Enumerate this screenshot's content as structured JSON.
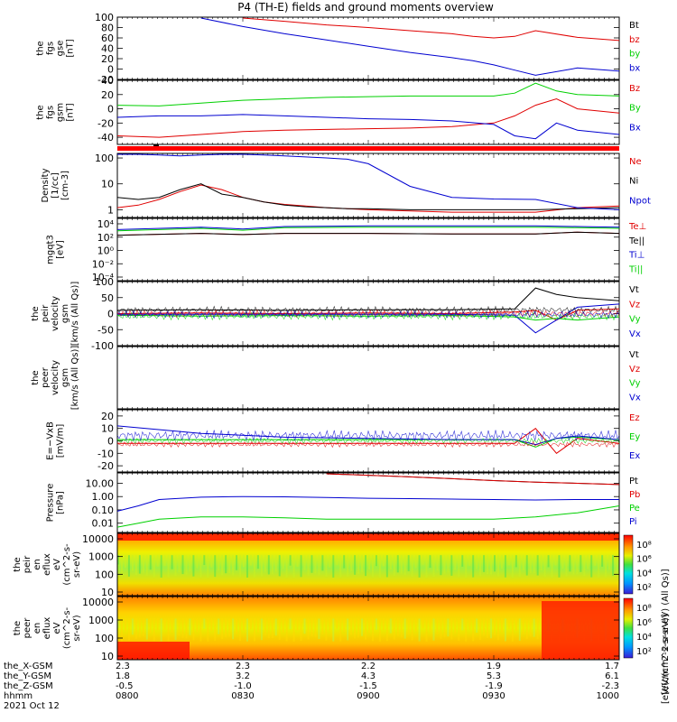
{
  "title": "P4 (TH-E) fields and ground moments overview",
  "colors": {
    "black": "#000000",
    "red": "#e00000",
    "green": "#00d000",
    "blue": "#0000d0",
    "spec_low": "#0000ff",
    "spec_high": "#ff0000"
  },
  "chart_data": [
    {
      "id": "fgs_gse",
      "type": "line",
      "ylabel": [
        "the",
        "fgs",
        "gse",
        "[nT]"
      ],
      "ylim": [
        -20,
        100
      ],
      "yticks": [
        "100",
        "80",
        "60",
        "40",
        "20",
        "0",
        "-20"
      ],
      "legend": [
        {
          "name": "Bt",
          "color": "black"
        },
        {
          "name": "bz",
          "color": "red"
        },
        {
          "name": "by",
          "color": "green"
        },
        {
          "name": "bx",
          "color": "blue"
        }
      ],
      "x": [
        0,
        10,
        20,
        30,
        40,
        50,
        60,
        70,
        80,
        85,
        90,
        95,
        100,
        110,
        120
      ],
      "series": [
        {
          "color": "black",
          "values": [
            null,
            null,
            null,
            null,
            null,
            null,
            null,
            null,
            null,
            null,
            null,
            null,
            null,
            null,
            null
          ]
        },
        {
          "color": "red",
          "values": [
            null,
            null,
            null,
            100,
            92,
            85,
            80,
            74,
            68,
            63,
            60,
            63,
            74,
            61,
            55
          ]
        },
        {
          "color": "green",
          "values": [
            null,
            null,
            null,
            null,
            null,
            null,
            null,
            null,
            null,
            null,
            null,
            null,
            null,
            null,
            null
          ]
        },
        {
          "color": "blue",
          "values": [
            null,
            null,
            100,
            82,
            68,
            56,
            44,
            32,
            22,
            16,
            8,
            -2,
            -12,
            2,
            -4
          ]
        }
      ]
    },
    {
      "id": "fgs_gsm",
      "type": "line",
      "ylabel": [
        "the",
        "fgs",
        "gsm",
        "[nT]"
      ],
      "ylim": [
        -50,
        40
      ],
      "yticks": [
        "40",
        "20",
        "0",
        "-20",
        "-40"
      ],
      "legend": [
        {
          "name": "Bz",
          "color": "red"
        },
        {
          "name": "By",
          "color": "green"
        },
        {
          "name": "Bx",
          "color": "blue"
        }
      ],
      "x": [
        0,
        10,
        20,
        30,
        40,
        50,
        60,
        70,
        80,
        90,
        95,
        100,
        105,
        110,
        120
      ],
      "series": [
        {
          "color": "red",
          "values": [
            -38,
            -40,
            -36,
            -32,
            -30,
            -29,
            -28,
            -27,
            -25,
            -20,
            -10,
            5,
            14,
            0,
            -6
          ]
        },
        {
          "color": "green",
          "values": [
            5,
            4,
            8,
            12,
            14,
            16,
            17,
            18,
            18,
            18,
            22,
            36,
            25,
            20,
            18
          ]
        },
        {
          "color": "blue",
          "values": [
            -12,
            -10,
            -10,
            -8,
            -10,
            -12,
            -14,
            -15,
            -17,
            -22,
            -38,
            -42,
            -20,
            -30,
            -36
          ]
        }
      ]
    },
    {
      "id": "density",
      "type": "line",
      "ylabel": [
        "Density",
        "[1/cc]",
        "[cm-3]"
      ],
      "yscale": "log",
      "ylim": [
        0.5,
        150
      ],
      "yticks": [
        "100",
        "10",
        "1"
      ],
      "legend": [
        {
          "name": "Ne",
          "color": "red"
        },
        {
          "name": "Ni",
          "color": "black"
        },
        {
          "name": "Npot",
          "color": "blue"
        }
      ],
      "x": [
        0,
        5,
        10,
        15,
        20,
        25,
        30,
        35,
        40,
        45,
        50,
        55,
        60,
        70,
        80,
        90,
        100,
        110,
        120
      ],
      "series": [
        {
          "color": "red",
          "values": [
            1.2,
            1.5,
            2.5,
            5,
            9,
            6,
            3,
            2,
            1.6,
            1.4,
            1.2,
            1.1,
            1.0,
            0.9,
            0.8,
            0.8,
            0.8,
            1.2,
            1.4
          ]
        },
        {
          "color": "black",
          "values": [
            3,
            2.5,
            3,
            6,
            10,
            4,
            3,
            2,
            1.5,
            1.3,
            1.2,
            1.1,
            1.1,
            1.0,
            1.0,
            1.0,
            1.0,
            1.1,
            1.2
          ]
        },
        {
          "color": "blue",
          "values": [
            150,
            140,
            130,
            120,
            130,
            140,
            140,
            130,
            120,
            110,
            100,
            90,
            60,
            8,
            3,
            2.6,
            2.5,
            1.2,
            1.0
          ]
        }
      ]
    },
    {
      "id": "temperature",
      "type": "line",
      "ylabel": [
        "mgqt3",
        "[eV]"
      ],
      "yscale": "log",
      "ylim": [
        -5,
        5
      ],
      "yticks": [
        "10⁴",
        "10²",
        "10⁰",
        "10⁻²",
        "10⁻⁴"
      ],
      "legend": [
        {
          "name": "Te⊥",
          "color": "red"
        },
        {
          "name": "Te||",
          "color": "black"
        },
        {
          "name": "Ti⊥",
          "color": "blue"
        },
        {
          "name": "Ti||",
          "color": "green"
        }
      ],
      "x": [
        0,
        20,
        30,
        40,
        60,
        80,
        100,
        110,
        120
      ],
      "series": [
        {
          "color": "red",
          "values": [
            2.3,
            2.6,
            2.4,
            2.6,
            2.6,
            2.5,
            2.5,
            2.8,
            2.6
          ]
        },
        {
          "color": "black",
          "values": [
            2.3,
            2.6,
            2.4,
            2.6,
            2.6,
            2.5,
            2.5,
            2.8,
            2.6
          ]
        },
        {
          "color": "blue",
          "values": [
            3.2,
            3.6,
            3.3,
            3.7,
            3.8,
            3.8,
            3.8,
            3.7,
            3.6
          ]
        },
        {
          "color": "green",
          "values": [
            3.0,
            3.4,
            3.1,
            3.5,
            3.6,
            3.6,
            3.6,
            3.5,
            3.4
          ]
        }
      ]
    },
    {
      "id": "peir_velocity",
      "type": "line",
      "ylabel": [
        "the",
        "peir",
        "velocity",
        "gsm",
        "[km/s (All Qs)]"
      ],
      "ylim": [
        -100,
        100
      ],
      "yticks": [
        "100",
        "50",
        "0",
        "-50",
        "-100"
      ],
      "legend": [
        {
          "name": "Vt",
          "color": "black"
        },
        {
          "name": "Vz",
          "color": "red"
        },
        {
          "name": "Vy",
          "color": "green"
        },
        {
          "name": "Vx",
          "color": "blue"
        }
      ],
      "x": [
        0,
        20,
        40,
        60,
        80,
        95,
        100,
        105,
        110,
        120
      ],
      "series": [
        {
          "color": "black",
          "values": [
            10,
            12,
            10,
            12,
            12,
            15,
            80,
            60,
            50,
            40
          ]
        },
        {
          "color": "red",
          "values": [
            0,
            2,
            0,
            2,
            0,
            5,
            10,
            -20,
            10,
            15
          ]
        },
        {
          "color": "green",
          "values": [
            -5,
            -8,
            -6,
            -8,
            -6,
            -10,
            -20,
            -15,
            -20,
            -10
          ]
        },
        {
          "color": "blue",
          "values": [
            -2,
            -2,
            -2,
            -2,
            -2,
            -5,
            -60,
            -20,
            20,
            30
          ]
        }
      ]
    },
    {
      "id": "peer_velocity",
      "type": "line",
      "ylabel": [
        "the",
        "peer",
        "velocity",
        "gsm",
        "[km/s (All Qs)]"
      ],
      "ylim": [
        -100,
        100
      ],
      "yticks": [],
      "legend": [
        {
          "name": "Vt",
          "color": "black"
        },
        {
          "name": "Vz",
          "color": "red"
        },
        {
          "name": "Vy",
          "color": "green"
        },
        {
          "name": "Vx",
          "color": "blue"
        }
      ],
      "x": [],
      "series": []
    },
    {
      "id": "efield",
      "type": "line",
      "ylabel": [
        "E=−VxB",
        "[mV/m]"
      ],
      "ylim": [
        -25,
        25
      ],
      "yticks": [
        "20",
        "10",
        "0",
        "-10",
        "-20"
      ],
      "legend": [
        {
          "name": "Ez",
          "color": "red"
        },
        {
          "name": "Ey",
          "color": "green"
        },
        {
          "name": "Ex",
          "color": "blue"
        }
      ],
      "x": [
        0,
        20,
        40,
        60,
        80,
        95,
        100,
        105,
        110,
        120
      ],
      "series": [
        {
          "color": "red",
          "values": [
            -2,
            -2,
            -2,
            -2,
            -2,
            -2,
            10,
            -10,
            2,
            -2
          ]
        },
        {
          "color": "green",
          "values": [
            1,
            1,
            1,
            1,
            1,
            1,
            -5,
            2,
            3,
            1
          ]
        },
        {
          "color": "blue",
          "values": [
            12,
            6,
            3,
            2,
            1,
            1,
            -3,
            2,
            4,
            1
          ]
        }
      ]
    },
    {
      "id": "pressure",
      "type": "line",
      "ylabel": [
        "Pressure",
        "[nPa]"
      ],
      "yscale": "log",
      "ylim": [
        0.002,
        60
      ],
      "yticks": [
        "10.00",
        "1.00",
        "0.10",
        "0.01"
      ],
      "legend": [
        {
          "name": "Pt",
          "color": "black"
        },
        {
          "name": "Pb",
          "color": "red"
        },
        {
          "name": "Pe",
          "color": "green"
        },
        {
          "name": "Pi",
          "color": "blue"
        }
      ],
      "x": [
        0,
        5,
        10,
        20,
        30,
        40,
        50,
        60,
        70,
        80,
        90,
        100,
        110,
        120
      ],
      "series": [
        {
          "color": "black",
          "values": [
            null,
            null,
            null,
            null,
            null,
            null,
            60,
            40,
            30,
            22,
            16,
            12,
            10,
            8
          ]
        },
        {
          "color": "red",
          "values": [
            null,
            null,
            null,
            null,
            null,
            null,
            60,
            40,
            30,
            22,
            16,
            12,
            10,
            8
          ]
        },
        {
          "color": "green",
          "values": [
            0.005,
            0.01,
            0.02,
            0.03,
            0.03,
            0.025,
            0.02,
            0.02,
            0.02,
            0.02,
            0.02,
            0.03,
            0.06,
            0.2
          ]
        },
        {
          "color": "blue",
          "values": [
            0.08,
            0.2,
            0.6,
            0.9,
            1.0,
            0.95,
            0.85,
            0.75,
            0.7,
            0.65,
            0.6,
            0.55,
            0.6,
            0.6
          ]
        }
      ]
    },
    {
      "id": "peir_spectrogram",
      "type": "heatmap",
      "ylabel": [
        "the",
        "peir",
        "en",
        "eflux",
        "eV",
        "(cm^2-s-",
        "sr-eV)"
      ],
      "yscale": "log",
      "yticks": [
        "10000",
        "1000",
        "100",
        "10"
      ],
      "colorbar_ticks": [
        "10⁸",
        "10⁶",
        "10⁴",
        "10²"
      ]
    },
    {
      "id": "peer_spectrogram",
      "type": "heatmap",
      "ylabel": [
        "the",
        "peer",
        "en",
        "eflux",
        "eV",
        "(cm^2-s-",
        "sr-eV)"
      ],
      "yscale": "log",
      "yticks": [
        "10000",
        "1000",
        "100",
        "10"
      ],
      "colorbar_ticks": [
        "10⁸",
        "10⁶",
        "10⁴",
        "10²"
      ]
    }
  ],
  "colorbar_label": "[eV/(cm^2-s-sr-eV)]",
  "colorbar_label_2": "[eV/(cm^2-s-sr-eV) (All Qs)]",
  "xaxis": {
    "row_labels": [
      "the_X-GSM",
      "the_Y-GSM",
      "the_Z-GSM",
      "hhmm",
      "2021 Oct 12"
    ],
    "columns": [
      {
        "values": [
          "2.3",
          "1.8",
          "-0.5",
          "0800"
        ]
      },
      {
        "values": [
          "2.3",
          "3.2",
          "-1.0",
          "0830"
        ]
      },
      {
        "values": [
          "2.2",
          "4.3",
          "-1.5",
          "0900"
        ]
      },
      {
        "values": [
          "1.9",
          "5.3",
          "-1.9",
          "0930"
        ]
      },
      {
        "values": [
          "1.7",
          "6.1",
          "-2.3",
          "1000"
        ]
      }
    ]
  }
}
